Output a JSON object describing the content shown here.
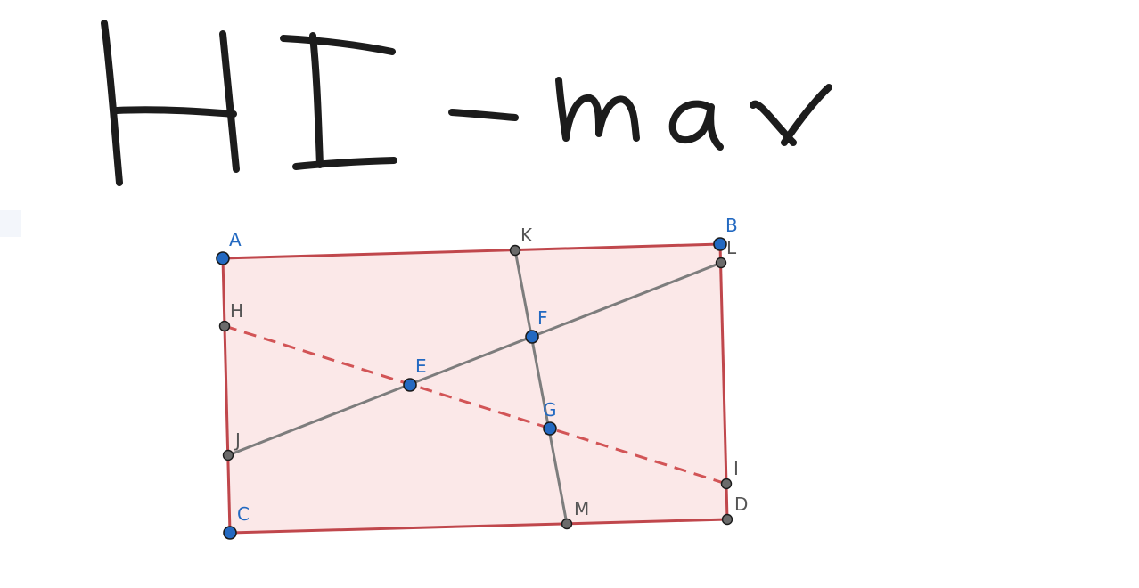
{
  "heading": {
    "text": "HI-max",
    "style": "handwritten"
  },
  "colors": {
    "polygon_fill": "#fbe8e8",
    "polygon_edge": "#c0474c",
    "segment": "#7d7d7d",
    "dashed_segment": "#d25456",
    "free_point": "#2369c1",
    "dependent_point": "#6b6b6b",
    "free_label": "#2369c1",
    "dependent_label": "#555555"
  },
  "points": {
    "A": {
      "label": "A",
      "kind": "free"
    },
    "B": {
      "label": "B",
      "kind": "free"
    },
    "C": {
      "label": "C",
      "kind": "free"
    },
    "D": {
      "label": "D",
      "kind": "dependent"
    },
    "E": {
      "label": "E",
      "kind": "free"
    },
    "F": {
      "label": "F",
      "kind": "free"
    },
    "G": {
      "label": "G",
      "kind": "free"
    },
    "H": {
      "label": "H",
      "kind": "dependent"
    },
    "I": {
      "label": "I",
      "kind": "dependent"
    },
    "J": {
      "label": "J",
      "kind": "dependent"
    },
    "K": {
      "label": "K",
      "kind": "dependent"
    },
    "L": {
      "label": "L",
      "kind": "dependent"
    },
    "M": {
      "label": "M",
      "kind": "dependent"
    }
  },
  "polygon": [
    "A",
    "B",
    "D",
    "C"
  ],
  "segments": [
    {
      "from": "J",
      "to": "L",
      "style": "solid"
    },
    {
      "from": "K",
      "to": "M",
      "style": "solid"
    },
    {
      "from": "H",
      "to": "I",
      "style": "dashed"
    }
  ]
}
